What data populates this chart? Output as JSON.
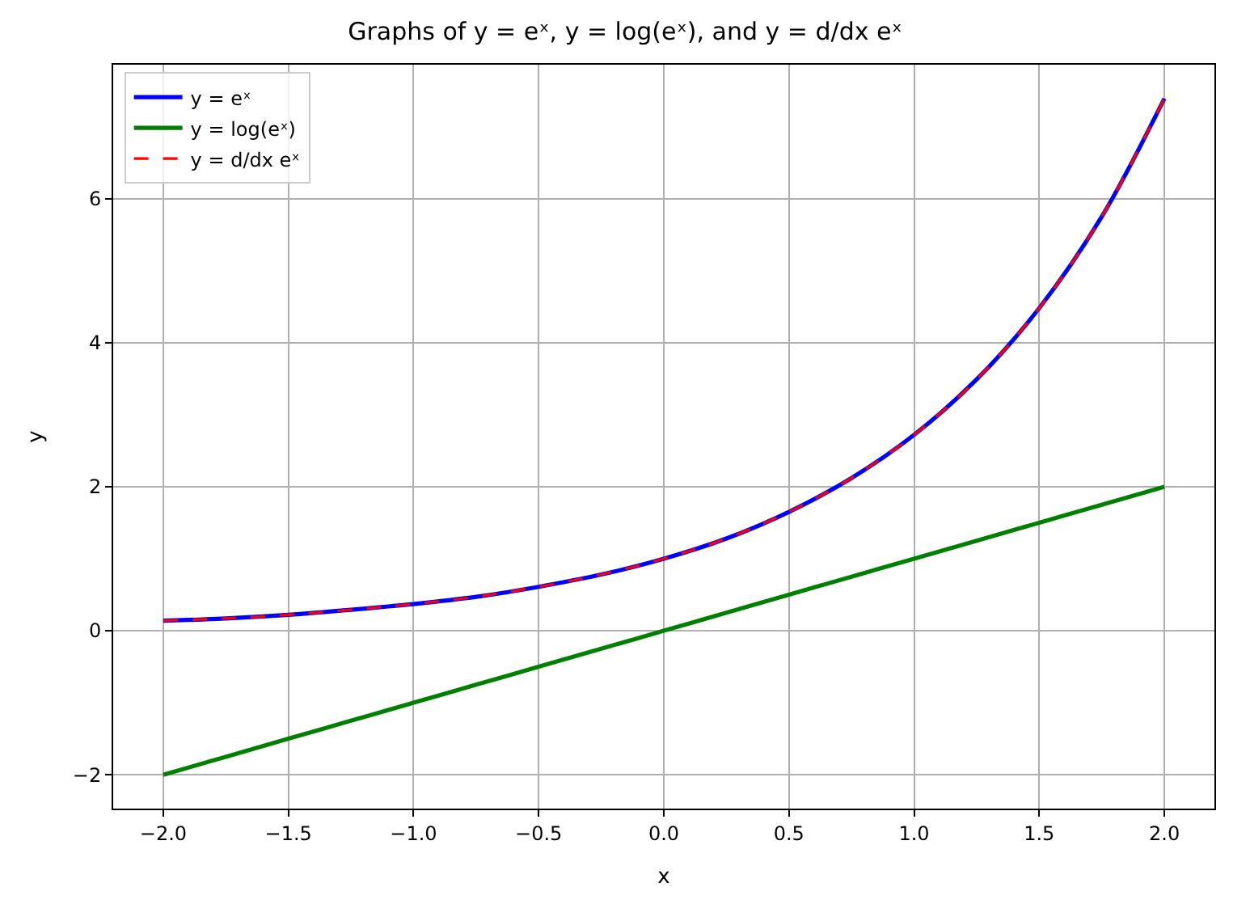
{
  "chart_data": {
    "type": "line",
    "title": "Graphs of y = eˣ, y = log(eˣ), and y = d/dx eˣ",
    "xlabel": "x",
    "ylabel": "y",
    "xlim": [
      -2.2,
      2.2
    ],
    "xticks": [
      {
        "value": -2,
        "label": "−2.0"
      },
      {
        "value": -1.5,
        "label": "−1.5"
      },
      {
        "value": -1,
        "label": "−1.0"
      },
      {
        "value": -0.5,
        "label": "−0.5"
      },
      {
        "value": 0,
        "label": "0.0"
      },
      0.5,
      {
        "value": 1,
        "label": "1.0"
      },
      1.5,
      {
        "value": 2,
        "label": "2.0"
      }
    ],
    "ylim": [
      -2.47,
      7.86
    ],
    "yticks": [
      {
        "value": -2,
        "label": "−2"
      },
      0,
      2,
      4,
      6
    ],
    "grid": true,
    "legend": "top left",
    "marker": "none",
    "x": [
      -2,
      -1.75,
      -1.5,
      -1.25,
      -1,
      -0.75,
      -0.5,
      -0.25,
      0,
      0.25,
      0.5,
      0.75,
      1,
      1.25,
      1.5,
      1.75,
      2
    ],
    "series": [
      {
        "name": "y = eˣ",
        "color": "#0000ff",
        "line_style": "solid",
        "values": [
          0.14,
          0.17,
          0.22,
          0.29,
          0.37,
          0.47,
          0.61,
          0.78,
          1,
          1.28,
          1.65,
          2.12,
          2.72,
          3.49,
          4.48,
          5.75,
          7.39
        ]
      },
      {
        "name": "y = log(eˣ)",
        "color": "#008000",
        "line_style": "solid",
        "values": [
          -2,
          -1.75,
          -1.5,
          -1.25,
          -1,
          -0.75,
          -0.5,
          -0.25,
          0,
          0.25,
          0.5,
          0.75,
          1,
          1.25,
          1.5,
          1.75,
          2
        ]
      },
      {
        "name": "y = d/dx eˣ",
        "color": "#ff0000",
        "line_style": "dashed",
        "values": [
          0.14,
          0.17,
          0.22,
          0.29,
          0.37,
          0.47,
          0.61,
          0.78,
          1,
          1.28,
          1.65,
          2.12,
          2.72,
          3.49,
          4.48,
          5.75,
          7.39
        ]
      }
    ]
  }
}
